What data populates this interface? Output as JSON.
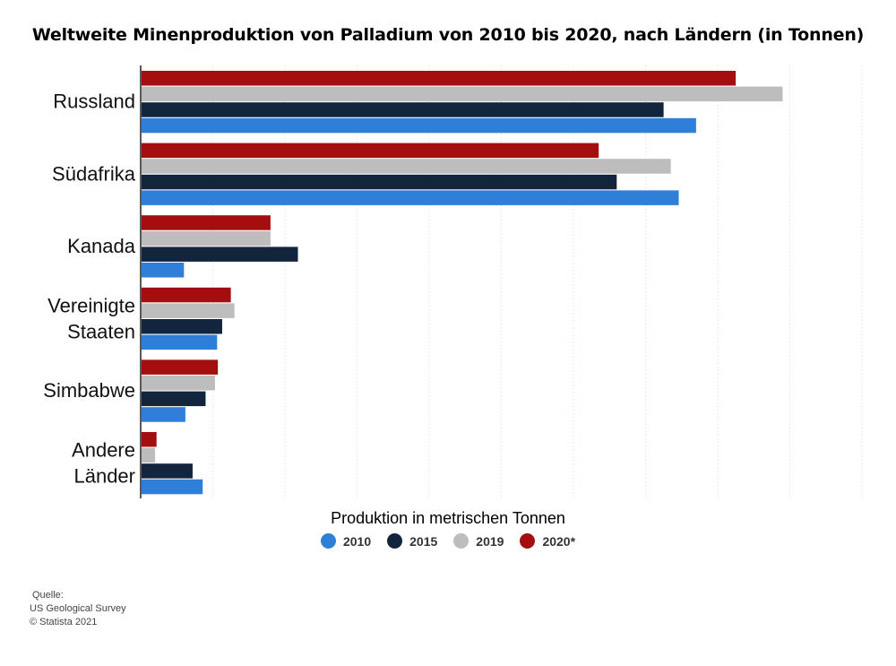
{
  "chart_data": {
    "type": "bar",
    "orientation": "horizontal",
    "title": "Weltweite Minenproduktion von Palladium von 2010 bis 2020, nach Ländern (in Tonnen)",
    "xlabel": "Produktion in metrischen Tonnen",
    "categories": [
      "Russland",
      "Südafrika",
      "Kanada",
      "Vereinigte Staaten",
      "Simbabwe",
      "Andere Länder"
    ],
    "xlim": [
      0,
      100
    ],
    "grid": true,
    "legend_position": "bottom",
    "series": [
      {
        "name": "2020*",
        "color": "#a50e0e",
        "values": [
          82.5,
          63.5,
          18.0,
          12.5,
          10.7,
          2.2
        ]
      },
      {
        "name": "2019",
        "color": "#bdbdbd",
        "values": [
          89.0,
          73.5,
          18.0,
          13.0,
          10.3,
          2.0
        ]
      },
      {
        "name": "2015",
        "color": "#13253c",
        "values": [
          72.5,
          66.0,
          21.8,
          11.3,
          9.0,
          7.2
        ]
      },
      {
        "name": "2010",
        "color": "#2f7ed8",
        "values": [
          77.0,
          74.6,
          6.0,
          10.6,
          6.2,
          8.6
        ]
      }
    ]
  },
  "legend": [
    {
      "label": "2010",
      "color": "#2f7ed8"
    },
    {
      "label": "2015",
      "color": "#13253c"
    },
    {
      "label": "2019",
      "color": "#bdbdbd"
    },
    {
      "label": "2020*",
      "color": "#a50e0e"
    }
  ],
  "source": {
    "heading": "Quelle:",
    "line1": "US Geological Survey",
    "line2": "© Statista 2021"
  }
}
